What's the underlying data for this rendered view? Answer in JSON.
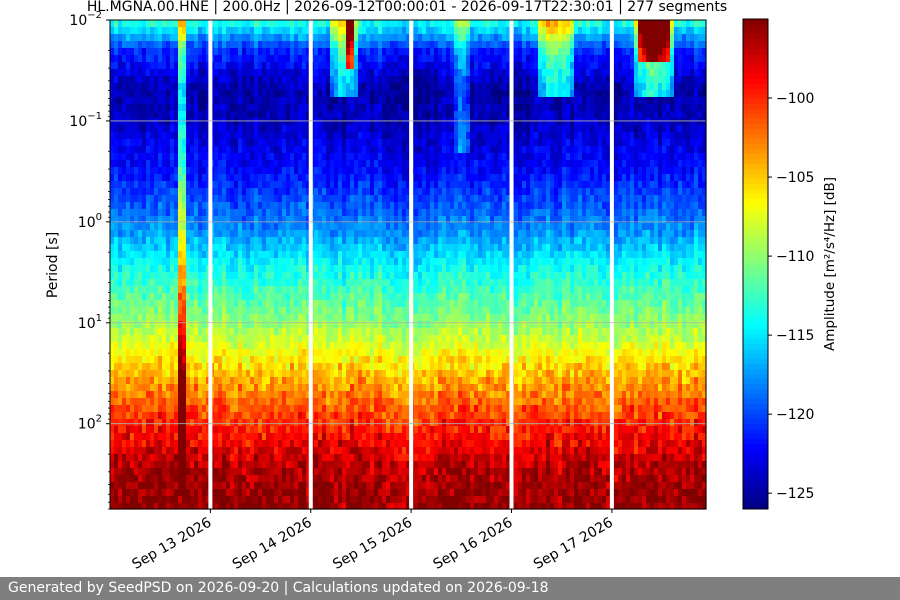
{
  "chart_data": {
    "type": "heatmap",
    "title": "HL.MGNA.00.HNE | 200.0Hz | 2026-09-12T00:00:01 - 2026-09-17T22:30:01 | 277 segments",
    "xlabel": "",
    "ylabel": "Period [s]",
    "y_scale": "log",
    "y_inverted": true,
    "ylim": [
      0.01,
      700
    ],
    "xlim": [
      "2026-09-12T00:00:01",
      "2026-09-17T22:30:01"
    ],
    "x_ticks": [
      {
        "date": "2026-09-13",
        "label": "Sep 13 2026"
      },
      {
        "date": "2026-09-14",
        "label": "Sep 14 2026"
      },
      {
        "date": "2026-09-15",
        "label": "Sep 15 2026"
      },
      {
        "date": "2026-09-16",
        "label": "Sep 16 2026"
      },
      {
        "date": "2026-09-17",
        "label": "Sep 17 2026"
      }
    ],
    "y_ticks": [
      {
        "value": 0.01,
        "base": "10",
        "exp": "−2"
      },
      {
        "value": 0.1,
        "base": "10",
        "exp": "−1"
      },
      {
        "value": 1,
        "base": "10",
        "exp": "0"
      },
      {
        "value": 10,
        "base": "10",
        "exp": "1"
      },
      {
        "value": 100,
        "base": "10",
        "exp": "2"
      }
    ],
    "grid": "horizontal",
    "colorbar": {
      "label": "Amplitude [m²/s⁴/Hz] [dB]",
      "colormap": "jet",
      "range": [
        -126,
        -95
      ],
      "ticks": [
        {
          "value": -100,
          "label": "−100"
        },
        {
          "value": -105,
          "label": "−105"
        },
        {
          "value": -110,
          "label": "−110"
        },
        {
          "value": -115,
          "label": "−115"
        },
        {
          "value": -120,
          "label": "−120"
        },
        {
          "value": -125,
          "label": "−125"
        }
      ]
    },
    "data_gaps": [
      "2026-09-13",
      "2026-09-14",
      "2026-09-15",
      "2026-09-16",
      "2026-09-17"
    ],
    "amplitude_profile": [
      {
        "period": 0.01,
        "db": -113
      },
      {
        "period": 0.02,
        "db": -121
      },
      {
        "period": 0.05,
        "db": -125
      },
      {
        "period": 0.1,
        "db": -124
      },
      {
        "period": 0.3,
        "db": -122
      },
      {
        "period": 1,
        "db": -118.5
      },
      {
        "period": 3,
        "db": -114
      },
      {
        "period": 10,
        "db": -110
      },
      {
        "period": 30,
        "db": -105
      },
      {
        "period": 100,
        "db": -100
      },
      {
        "period": 300,
        "db": -96.5
      },
      {
        "period": 700,
        "db": -95.5
      }
    ],
    "events": [
      {
        "start": "2026-09-12T16:30",
        "end": "2026-09-12T17:45",
        "period_min": 0.01,
        "period_max": 500,
        "delta_db": 14
      },
      {
        "start": "2026-09-14T05:00",
        "end": "2026-09-14T11:00",
        "period_min": 0.01,
        "period_max": 0.06,
        "delta_db": 10
      },
      {
        "start": "2026-09-14T08:00",
        "end": "2026-09-14T10:30",
        "period_min": 0.01,
        "period_max": 0.03,
        "delta_db": 16
      },
      {
        "start": "2026-09-15T10:00",
        "end": "2026-09-15T14:00",
        "period_min": 0.01,
        "period_max": 0.2,
        "delta_db": 5
      },
      {
        "start": "2026-09-16T06:00",
        "end": "2026-09-16T15:00",
        "period_min": 0.01,
        "period_max": 0.06,
        "delta_db": 11
      },
      {
        "start": "2026-09-17T05:00",
        "end": "2026-09-17T15:00",
        "period_min": 0.01,
        "period_max": 0.06,
        "delta_db": 12
      },
      {
        "start": "2026-09-17T06:00",
        "end": "2026-09-17T14:00",
        "period_min": 0.01,
        "period_max": 0.025,
        "delta_db": 18
      }
    ]
  },
  "footer": {
    "text": "Generated by SeedPSD on 2026-09-20 | Calculations updated on 2026-09-18"
  }
}
